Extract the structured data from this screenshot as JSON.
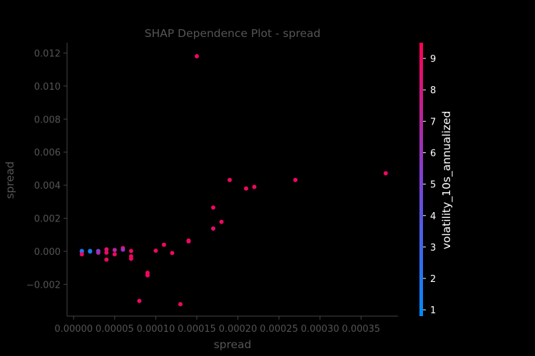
{
  "chart_data": {
    "type": "scatter",
    "title": "SHAP Dependence Plot - spread",
    "xlabel": "spread",
    "ylabel": "spread",
    "x_ticks": [
      "0.00000",
      "0.00005",
      "0.00010",
      "0.00015",
      "0.00020",
      "0.00025",
      "0.00030",
      "0.00035"
    ],
    "y_ticks": [
      "−0.002",
      "0.000",
      "0.002",
      "0.004",
      "0.006",
      "0.008",
      "0.010",
      "0.012"
    ],
    "xlim": [
      -8e-06,
      0.000395
    ],
    "ylim": [
      -0.00392,
      0.01262
    ],
    "colorbar": {
      "label": "volatility_10s_annualized",
      "ticks": [
        "1",
        "2",
        "3",
        "4",
        "5",
        "6",
        "7",
        "8",
        "9"
      ],
      "range": [
        0.8,
        9.5
      ],
      "colors": [
        "#008afb",
        "#7c41d6",
        "#ff0052"
      ]
    },
    "series": [
      {
        "points": [
          {
            "x": 1e-05,
            "y": 2e-05,
            "c": 1.5
          },
          {
            "x": 1e-05,
            "y": -2e-05,
            "c": 2.5
          },
          {
            "x": 1e-05,
            "y": -0.00018,
            "c": 9.0
          },
          {
            "x": 2e-05,
            "y": 2e-05,
            "c": 1.2
          },
          {
            "x": 2e-05,
            "y": -1e-05,
            "c": 1.5
          },
          {
            "x": 3e-05,
            "y": 2e-05,
            "c": 5.0
          },
          {
            "x": 3e-05,
            "y": -8e-05,
            "c": 6.5
          },
          {
            "x": 4e-05,
            "y": 0.00012,
            "c": 8.5
          },
          {
            "x": 4e-05,
            "y": -8e-05,
            "c": 9.0
          },
          {
            "x": 4e-05,
            "y": -0.0005,
            "c": 9.0
          },
          {
            "x": 5e-05,
            "y": 8e-05,
            "c": 7.0
          },
          {
            "x": 5e-05,
            "y": -0.00018,
            "c": 9.0
          },
          {
            "x": 6e-05,
            "y": 0.0002,
            "c": 8.5
          },
          {
            "x": 6e-05,
            "y": 0.0001,
            "c": 6.0
          },
          {
            "x": 7e-05,
            "y": 2e-05,
            "c": 9.0
          },
          {
            "x": 7e-05,
            "y": -0.0003,
            "c": 9.0
          },
          {
            "x": 7e-05,
            "y": -0.00045,
            "c": 9.0
          },
          {
            "x": 8e-05,
            "y": -0.003,
            "c": 9.0
          },
          {
            "x": 9e-05,
            "y": -0.0013,
            "c": 9.0
          },
          {
            "x": 9e-05,
            "y": -0.00145,
            "c": 9.0
          },
          {
            "x": 0.0001,
            "y": 4e-05,
            "c": 9.0
          },
          {
            "x": 0.00011,
            "y": 0.0004,
            "c": 9.0
          },
          {
            "x": 0.00012,
            "y": -0.0001,
            "c": 9.0
          },
          {
            "x": 0.00013,
            "y": -0.0032,
            "c": 9.0
          },
          {
            "x": 0.00014,
            "y": 0.0006,
            "c": 9.0
          },
          {
            "x": 0.00014,
            "y": 0.00065,
            "c": 9.0
          },
          {
            "x": 0.00015,
            "y": 0.0118,
            "c": 9.0
          },
          {
            "x": 0.00017,
            "y": 0.00265,
            "c": 9.0
          },
          {
            "x": 0.00017,
            "y": 0.00138,
            "c": 8.5
          },
          {
            "x": 0.00018,
            "y": 0.00178,
            "c": 9.0
          },
          {
            "x": 0.00019,
            "y": 0.00432,
            "c": 9.0
          },
          {
            "x": 0.00021,
            "y": 0.0038,
            "c": 9.0
          },
          {
            "x": 0.00022,
            "y": 0.0039,
            "c": 9.0
          },
          {
            "x": 0.00027,
            "y": 0.00432,
            "c": 9.0
          },
          {
            "x": 0.00038,
            "y": 0.00472,
            "c": 9.0
          }
        ]
      }
    ],
    "grid": false
  }
}
